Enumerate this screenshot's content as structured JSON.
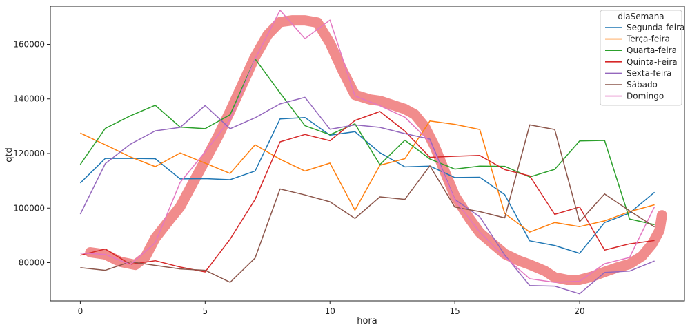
{
  "chart_data": {
    "type": "line",
    "title": "",
    "xlabel": "hora",
    "ylabel": "qtd",
    "xlim": [
      -1.2,
      24.2
    ],
    "ylim": [
      66000,
      174000
    ],
    "xticks": [
      0,
      5,
      10,
      15,
      20
    ],
    "yticks": [
      80000,
      100000,
      120000,
      140000,
      160000
    ],
    "grid": false,
    "legend_title": "diaSemana",
    "legend_position": "top-right",
    "x": [
      0,
      1,
      2,
      3,
      4,
      5,
      6,
      7,
      8,
      9,
      10,
      11,
      12,
      13,
      14,
      15,
      16,
      17,
      18,
      19,
      20,
      21,
      22,
      23
    ],
    "series": [
      {
        "name": "Segunda-feira",
        "color": "#1f77b4",
        "values": [
          109200,
          118200,
          118200,
          118100,
          110700,
          110800,
          110400,
          113600,
          132700,
          133200,
          126700,
          128000,
          120300,
          115100,
          115400,
          111200,
          111300,
          104900,
          88000,
          86300,
          83400,
          94700,
          98200,
          105800
        ]
      },
      {
        "name": "Terça-feira",
        "color": "#ff7f0e",
        "values": [
          127500,
          123200,
          118800,
          115200,
          120200,
          116500,
          112700,
          123200,
          117900,
          113600,
          116500,
          99200,
          115700,
          118100,
          131900,
          130700,
          128800,
          98000,
          91200,
          94700,
          93200,
          95300,
          98700,
          101200
        ]
      },
      {
        "name": "Quarta-feira",
        "color": "#2ca02c",
        "values": [
          116000,
          129200,
          133800,
          137700,
          129700,
          129100,
          134200,
          154700,
          142200,
          130200,
          126900,
          130900,
          115900,
          124900,
          118000,
          114300,
          115400,
          115300,
          111400,
          114200,
          124600,
          124800,
          96000,
          93900
        ]
      },
      {
        "name": "Quinta-Feira",
        "color": "#d62728",
        "values": [
          82700,
          85000,
          79400,
          80700,
          78400,
          76600,
          88600,
          103200,
          124300,
          127000,
          124700,
          132100,
          135400,
          128200,
          118600,
          119000,
          119300,
          114100,
          111800,
          97700,
          100400,
          84600,
          86900,
          88100
        ]
      },
      {
        "name": "Sexta-feira",
        "color": "#9467bd",
        "values": [
          97800,
          116300,
          123400,
          128300,
          129600,
          137600,
          129100,
          133100,
          138200,
          140600,
          128900,
          130500,
          129600,
          127300,
          125300,
          103200,
          96800,
          82800,
          71600,
          71400,
          68600,
          76400,
          76900,
          80600
        ]
      },
      {
        "name": "Sábado",
        "color": "#8c564b",
        "values": [
          78200,
          77200,
          80300,
          79000,
          77700,
          77200,
          72800,
          81700,
          107000,
          104800,
          102300,
          96200,
          104100,
          103200,
          115500,
          100400,
          98700,
          96400,
          130500,
          128800,
          95000,
          105200,
          99000,
          93100
        ]
      },
      {
        "name": "Domingo",
        "color": "#e377c2",
        "values": [
          83500,
          83000,
          79300,
          87300,
          109400,
          120600,
          132500,
          154700,
          172500,
          162100,
          168900,
          141100,
          137500,
          133300,
          124300,
          103000,
          91200,
          82100,
          74100,
          72800,
          73200,
          79600,
          81900,
          100500
        ]
      }
    ],
    "highlight": {
      "description": "red marker stroke",
      "color": "#f08080",
      "points": [
        [
          0.4,
          83800
        ],
        [
          1,
          83000
        ],
        [
          1.6,
          80300
        ],
        [
          2.2,
          79200
        ],
        [
          2.6,
          82000
        ],
        [
          3,
          89000
        ],
        [
          3.6,
          96000
        ],
        [
          4,
          100500
        ],
        [
          4.5,
          109000
        ],
        [
          5,
          117500
        ],
        [
          5.5,
          126000
        ],
        [
          6,
          135500
        ],
        [
          6.5,
          145500
        ],
        [
          7,
          155500
        ],
        [
          7.5,
          163500
        ],
        [
          8,
          168200
        ],
        [
          8.5,
          168800
        ],
        [
          9,
          168800
        ],
        [
          9.5,
          168000
        ],
        [
          10,
          160500
        ],
        [
          10.5,
          150500
        ],
        [
          11,
          141500
        ],
        [
          11.6,
          139800
        ],
        [
          12,
          139300
        ],
        [
          12.6,
          137500
        ],
        [
          13,
          136300
        ],
        [
          13.4,
          134300
        ],
        [
          13.8,
          129800
        ],
        [
          14.2,
          122500
        ],
        [
          14.6,
          113300
        ],
        [
          15,
          104500
        ],
        [
          15.6,
          96000
        ],
        [
          16,
          91000
        ],
        [
          16.6,
          86300
        ],
        [
          17,
          83200
        ],
        [
          17.6,
          80600
        ],
        [
          18,
          79300
        ],
        [
          18.6,
          77000
        ],
        [
          19,
          74600
        ],
        [
          19.5,
          73700
        ],
        [
          20,
          73700
        ],
        [
          20.5,
          74900
        ],
        [
          21,
          76600
        ],
        [
          21.5,
          78200
        ],
        [
          22,
          79500
        ],
        [
          22.5,
          82400
        ],
        [
          22.9,
          86800
        ],
        [
          23.2,
          91800
        ],
        [
          23.3,
          97400
        ]
      ]
    }
  }
}
